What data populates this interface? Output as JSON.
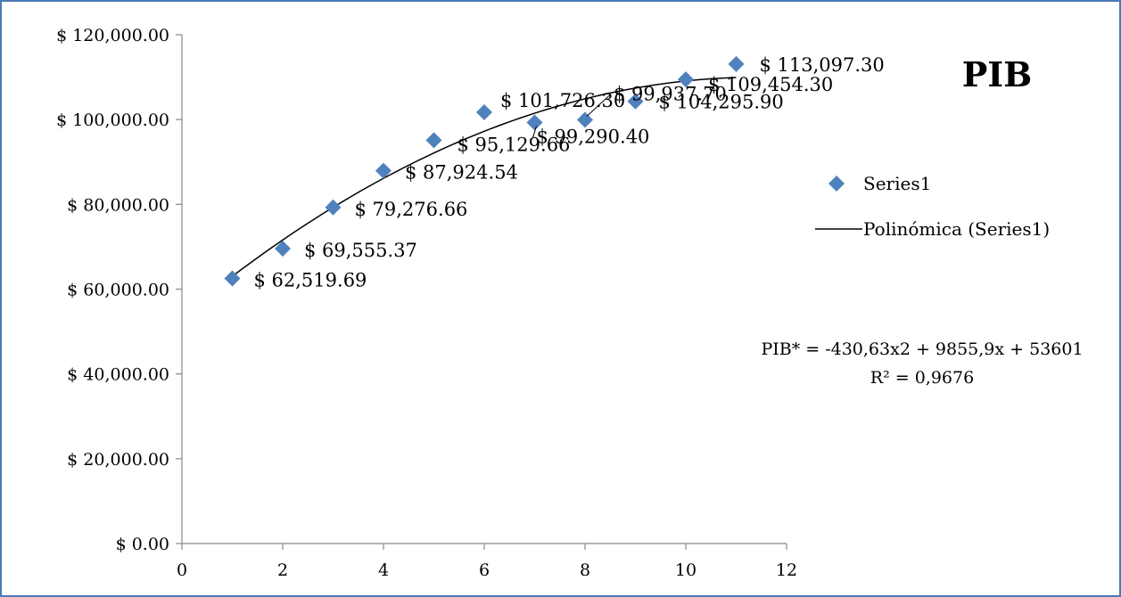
{
  "chart_data": {
    "type": "scatter",
    "title": "PIB",
    "xlabel": "",
    "ylabel": "",
    "xlim": [
      0,
      12
    ],
    "ylim": [
      0,
      120000
    ],
    "x_ticks": [
      0,
      2,
      4,
      6,
      8,
      10,
      12
    ],
    "y_ticks": [
      0,
      20000,
      40000,
      60000,
      80000,
      100000,
      120000
    ],
    "y_tick_labels": [
      "$ 0.00",
      "$ 20,000.00",
      "$ 40,000.00",
      "$ 60,000.00",
      "$ 80,000.00",
      "$ 100,000.00",
      "$ 120,000.00"
    ],
    "grid": false,
    "legend_position": "right",
    "marker_color": "#4f81bd",
    "trend_color": "#000000",
    "series": [
      {
        "name": "Series1",
        "x": [
          1,
          2,
          3,
          4,
          5,
          6,
          7,
          8,
          9,
          10,
          11
        ],
        "y": [
          62519.69,
          69555.37,
          79276.66,
          87924.54,
          95129.66,
          101726.3,
          99290.4,
          99937.7,
          104295.9,
          109454.3,
          113097.3
        ],
        "data_labels": [
          "$ 62,519.69",
          "$ 69,555.37",
          "$ 79,276.66",
          "$ 87,924.54",
          "$ 95,129.66",
          "$ 101,726.30",
          "$ 99,290.40",
          "$ 99,937.70",
          "$ 104,295.90",
          "$ 109,454.30",
          "$ 113,097.30"
        ]
      }
    ],
    "trendline": {
      "name": "Polinómica (Series1)",
      "type": "polynomial",
      "coefficients": [
        -430.63,
        9855.9,
        53601
      ],
      "x_range": [
        1,
        11
      ],
      "equation_text": "PIB* = -430,63x2 + 9855,9x + 53601",
      "r2_text": "R² = 0,9676"
    }
  }
}
